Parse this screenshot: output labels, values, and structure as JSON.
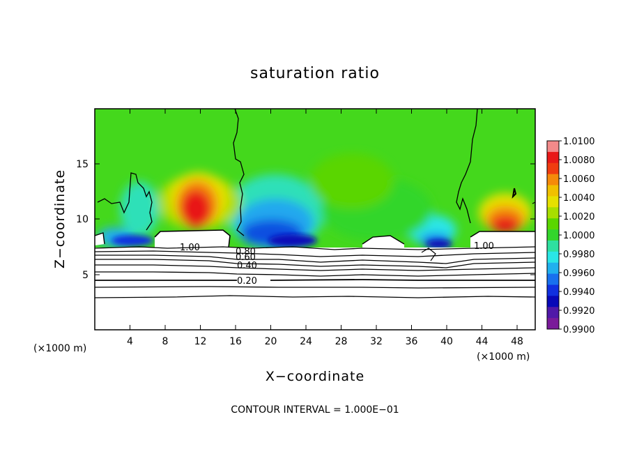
{
  "chart_data": {
    "type": "heatmap",
    "title": "saturation ratio",
    "xlabel": "X−coordinate",
    "ylabel": "Z−coordinate",
    "x_unit": "(×1000 m)",
    "y_unit": "(×1000 m)",
    "xlim": [
      0,
      50
    ],
    "ylim": [
      0,
      20
    ],
    "x_ticks": [
      4,
      8,
      12,
      16,
      20,
      24,
      28,
      32,
      36,
      40,
      44,
      48
    ],
    "y_ticks": [
      5,
      10,
      15
    ],
    "x_tick_labels": [
      "4",
      "8",
      "12",
      "16",
      "20",
      "24",
      "28",
      "32",
      "36",
      "40",
      "44",
      "48"
    ],
    "y_tick_labels": [
      "5",
      "10",
      "15"
    ],
    "footer": "CONTOUR INTERVAL = 1.000E−01",
    "colorbar": {
      "labels": [
        "1.0100",
        "1.0080",
        "1.0060",
        "1.0040",
        "1.0020",
        "1.0000",
        "0.9980",
        "0.9960",
        "0.9940",
        "0.9920",
        "0.9900"
      ],
      "colors": [
        "#f28a8a",
        "#e81818",
        "#f03c10",
        "#f58a0a",
        "#f0c000",
        "#e6e000",
        "#a8de00",
        "#5ad600",
        "#33d62c",
        "#2ee0a0",
        "#2ae6e6",
        "#20b0ee",
        "#1870ee",
        "#1030e0",
        "#0808b8",
        "#5018a8",
        "#7a1a9a"
      ]
    },
    "contour_labels": [
      "1.00",
      "0.80",
      "0.60",
      "0.40",
      "0.20",
      "1.00"
    ],
    "contour_levels": [
      0.2,
      0.4,
      0.6,
      0.8,
      1.0
    ],
    "contour_interval": 0.1,
    "regions": {
      "warm_plumes_x": [
        [
          7,
          16
        ],
        [
          43,
          50
        ]
      ],
      "cool_plumes_x": [
        [
          16,
          26
        ],
        [
          35,
          43
        ]
      ],
      "cloud_base_z": 7.7,
      "background_value": 1.0
    }
  }
}
